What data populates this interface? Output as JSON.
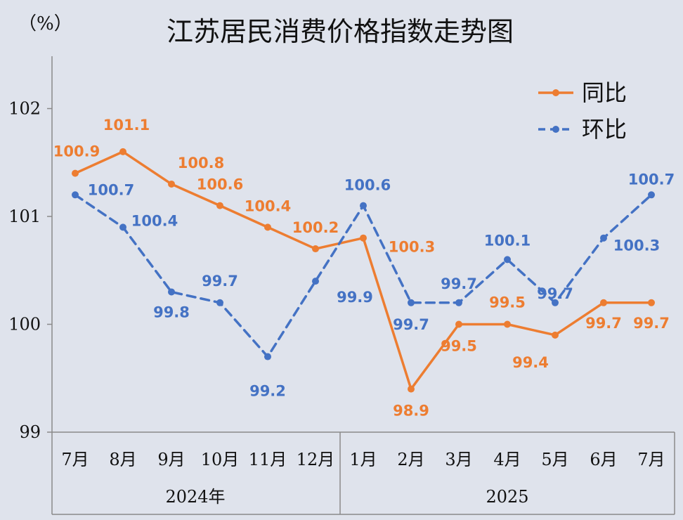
{
  "chart_data": {
    "type": "line",
    "title": "江苏居民消费价格指数走势图",
    "unit_label": "（%）",
    "categories": [
      "7月",
      "8月",
      "9月",
      "10月",
      "11月",
      "12月",
      "1月",
      "2月",
      "3月",
      "4月",
      "5月",
      "6月",
      "7月"
    ],
    "groups": [
      {
        "label": "2024年",
        "from": 0,
        "to": 5
      },
      {
        "label": "2025",
        "from": 6,
        "to": 12
      }
    ],
    "ylim": [
      99,
      102.5
    ],
    "yticks": [
      "99",
      "100",
      "101",
      "102"
    ],
    "series": [
      {
        "name": "同比",
        "color": "#ed7d31",
        "style": "solid",
        "values": [
          100.9,
          101.1,
          100.8,
          100.6,
          100.4,
          100.2,
          100.3,
          98.9,
          99.5,
          99.5,
          99.4,
          99.7,
          99.7
        ],
        "labels": [
          "100.9",
          "101.1",
          "100.8",
          "100.6",
          "100.4",
          "100.2",
          "100.3",
          "98.9",
          "99.5",
          "99.5",
          "99.4",
          "99.7",
          "99.7"
        ],
        "plot_values": [
          101.4,
          101.6,
          101.3,
          101.1,
          100.9,
          100.7,
          100.8,
          99.4,
          100.0,
          100.0,
          99.9,
          100.2,
          100.2
        ]
      },
      {
        "name": "环比",
        "color": "#4472c4",
        "style": "dashed",
        "values": [
          100.7,
          100.4,
          99.8,
          99.7,
          99.2,
          99.9,
          100.6,
          99.7,
          99.7,
          100.1,
          99.7,
          100.3,
          100.7
        ],
        "labels": [
          "100.7",
          "100.4",
          "99.8",
          "99.7",
          "99.2",
          "99.9",
          "100.6",
          "99.7",
          "99.7",
          "100.1",
          "99.7",
          "100.3",
          "100.7"
        ],
        "plot_values": [
          101.2,
          100.9,
          100.3,
          100.2,
          99.7,
          100.4,
          101.1,
          100.2,
          100.2,
          100.6,
          100.2,
          100.8,
          101.2
        ]
      }
    ],
    "legend_position": "top-right",
    "grid": false
  }
}
